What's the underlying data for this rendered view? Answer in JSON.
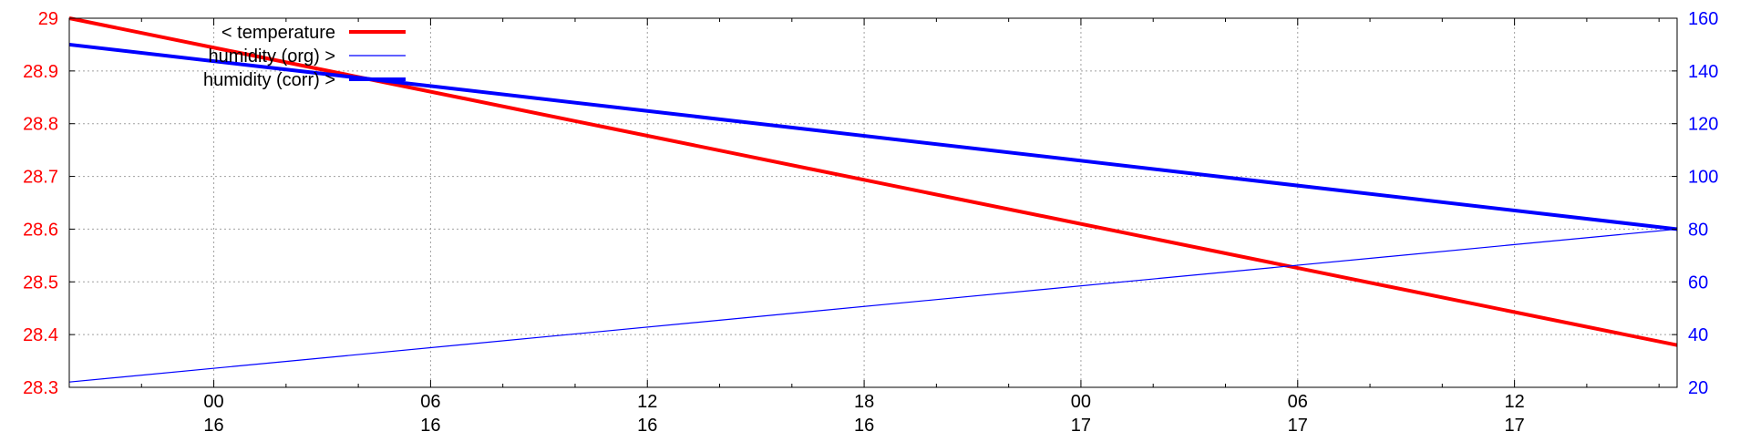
{
  "colors": {
    "temperature": "#ff0000",
    "humidity": "#0000ff",
    "grid": "#a0a0a0",
    "axis": "#000000",
    "background": "#ffffff"
  },
  "chart_data": {
    "type": "line",
    "grid": true,
    "legend_position": "top-left",
    "x_axis": {
      "ticks": [
        {
          "time": "00",
          "day": "16"
        },
        {
          "time": "06",
          "day": "16"
        },
        {
          "time": "12",
          "day": "16"
        },
        {
          "time": "18",
          "day": "16"
        },
        {
          "time": "00",
          "day": "17"
        },
        {
          "time": "06",
          "day": "17"
        },
        {
          "time": "12",
          "day": "17"
        }
      ],
      "range_hours": [
        -4,
        40.5
      ],
      "tick_positions_hours": [
        0,
        6,
        12,
        18,
        24,
        30,
        36
      ]
    },
    "y_left": {
      "label_color": "#ff0000",
      "range": [
        28.3,
        29.0
      ],
      "ticks": [
        29,
        28.9,
        28.8,
        28.7,
        28.6,
        28.5,
        28.4,
        28.3
      ]
    },
    "y_right": {
      "label_color": "#0000ff",
      "range": [
        20,
        160
      ],
      "ticks": [
        160,
        140,
        120,
        100,
        80,
        60,
        40,
        20
      ]
    },
    "series": [
      {
        "name": "< temperature",
        "axis": "left",
        "color": "#ff0000",
        "line_width": "thick",
        "points": [
          {
            "x": -4,
            "y": 29.0
          },
          {
            "x": 40.5,
            "y": 28.38
          }
        ]
      },
      {
        "name": "humidity (org) >",
        "axis": "right",
        "color": "#0000ff",
        "line_width": "thin",
        "points": [
          {
            "x": -4,
            "y": 22
          },
          {
            "x": 40.5,
            "y": 80
          }
        ]
      },
      {
        "name": "humidity (corr) >",
        "axis": "right",
        "color": "#0000ff",
        "line_width": "thick",
        "points": [
          {
            "x": -4,
            "y": 150
          },
          {
            "x": 40.5,
            "y": 80
          }
        ]
      }
    ]
  }
}
